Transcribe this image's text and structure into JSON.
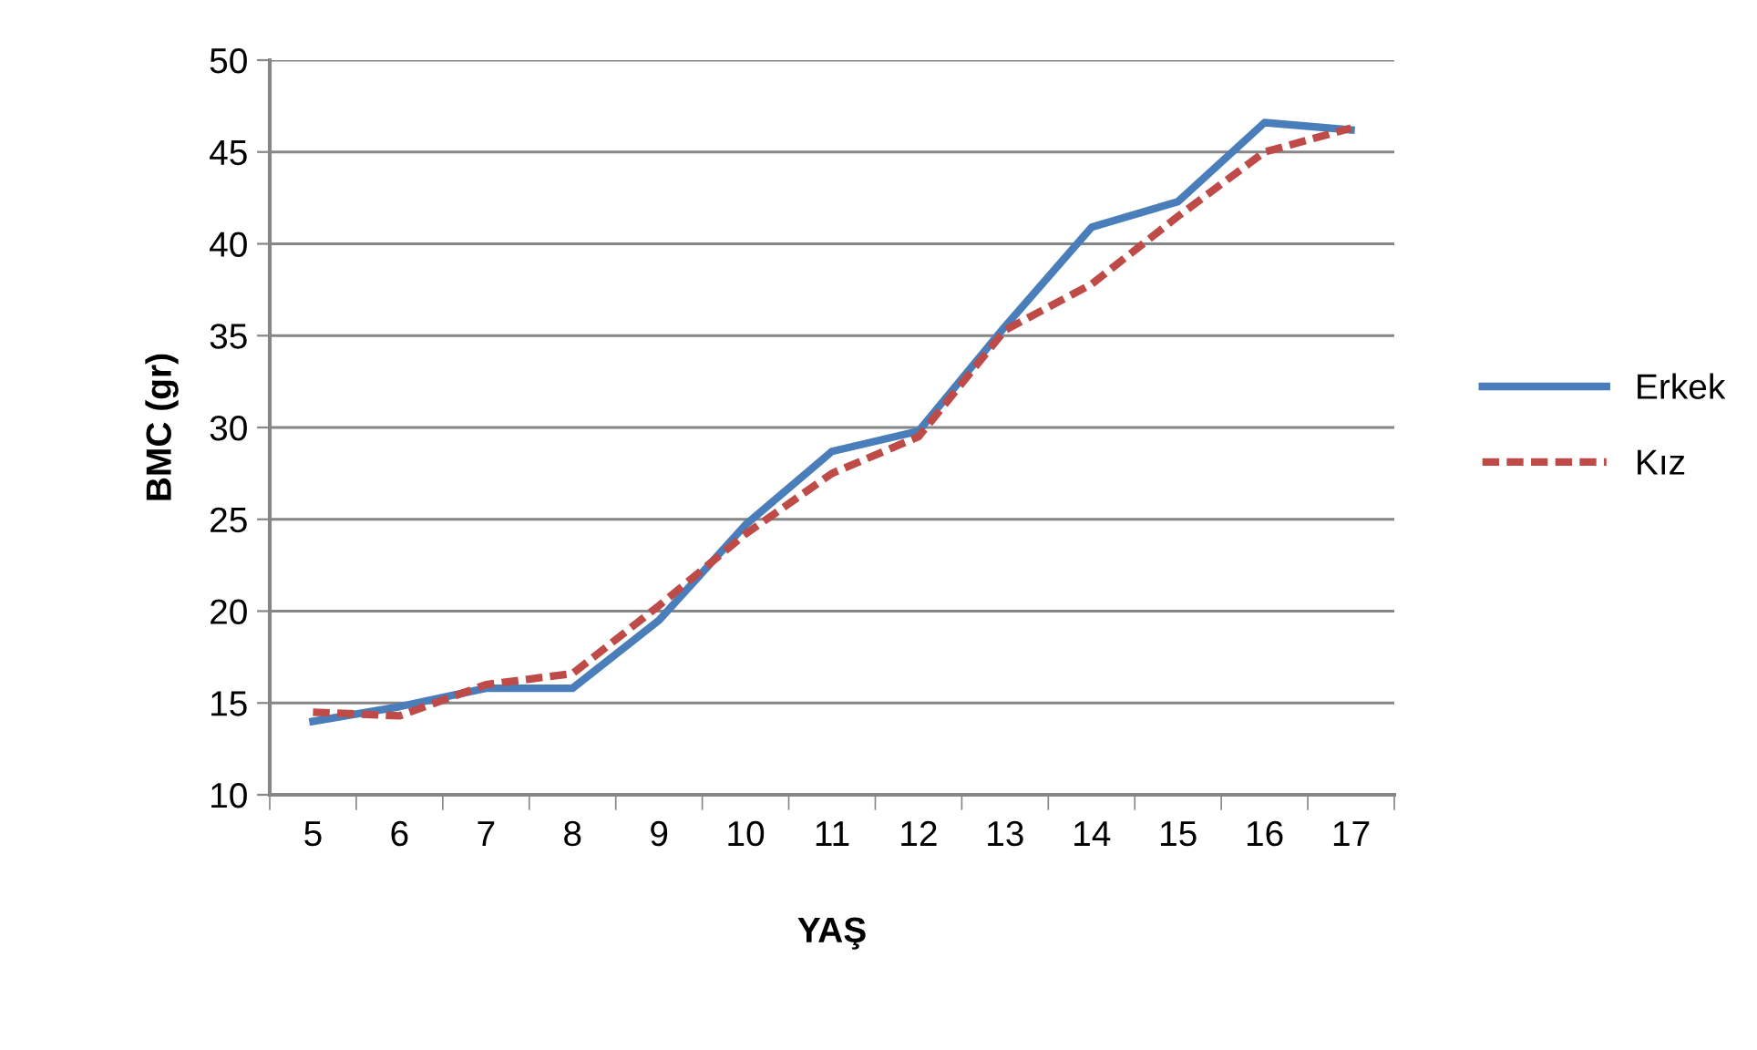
{
  "chart_data": {
    "type": "line",
    "xlabel": "YAŞ",
    "ylabel": "BMC (gr)",
    "categories": [
      "5",
      "6",
      "7",
      "8",
      "9",
      "10",
      "11",
      "12",
      "13",
      "14",
      "15",
      "16",
      "17"
    ],
    "series": [
      {
        "name": "Erkek",
        "color": "#4a7ebb",
        "line_style": "solid",
        "values": [
          14.0,
          14.8,
          15.8,
          15.8,
          19.5,
          24.7,
          28.7,
          29.8,
          35.5,
          40.9,
          42.3,
          46.6,
          46.2
        ]
      },
      {
        "name": "Kız",
        "color": "#be4b48",
        "line_style": "dashed",
        "values": [
          14.5,
          14.3,
          16.0,
          16.6,
          20.3,
          24.2,
          27.5,
          29.5,
          35.3,
          37.8,
          41.5,
          45.0,
          46.3
        ]
      }
    ],
    "ylim": [
      10,
      50
    ],
    "yticks": [
      10,
      15,
      20,
      25,
      30,
      35,
      40,
      45,
      50
    ],
    "grid": "y",
    "legend": "right",
    "marker": "none"
  }
}
